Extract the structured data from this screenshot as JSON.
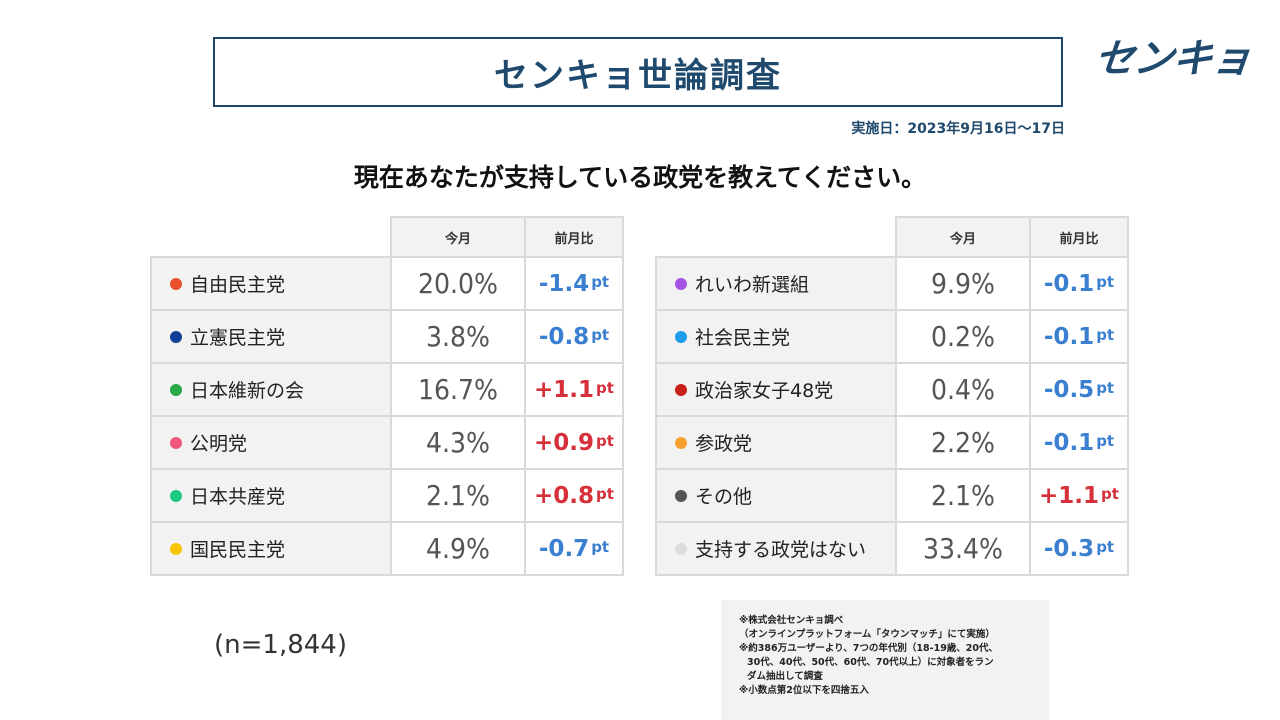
{
  "header": {
    "title": "センキョ世論調査",
    "logo_text": "センキョ",
    "survey_date": "実施日：2023年9月16日～17日"
  },
  "question": "現在あなたが支持している政党を教えてください。",
  "table_headers": {
    "current": "今月",
    "change": "前月比"
  },
  "change_unit": "pt",
  "chart_data": {
    "type": "table",
    "columns": [
      "今月",
      "前月比"
    ],
    "rows": [
      {
        "party": "自由民主党",
        "color": "#e8502e",
        "current": "20.0%",
        "change": "-1.4",
        "direction": "down"
      },
      {
        "party": "立憲民主党",
        "color": "#133f96",
        "current": "3.8%",
        "change": "-0.8",
        "direction": "down"
      },
      {
        "party": "日本維新の会",
        "color": "#27a84a",
        "current": "16.7%",
        "change": "+1.1",
        "direction": "up"
      },
      {
        "party": "公明党",
        "color": "#f0567a",
        "current": "4.3%",
        "change": "+0.9",
        "direction": "up"
      },
      {
        "party": "日本共産党",
        "color": "#1fc783",
        "current": "2.1%",
        "change": "+0.8",
        "direction": "up"
      },
      {
        "party": "国民民主党",
        "color": "#f6c300",
        "current": "4.9%",
        "change": "-0.7",
        "direction": "down"
      },
      {
        "party": "れいわ新選組",
        "color": "#a455e6",
        "current": "9.9%",
        "change": "-0.1",
        "direction": "down"
      },
      {
        "party": "社会民主党",
        "color": "#1e9bea",
        "current": "0.2%",
        "change": "-0.1",
        "direction": "down"
      },
      {
        "party": "政治家女子48党",
        "color": "#c9201c",
        "current": "0.4%",
        "change": "-0.5",
        "direction": "down"
      },
      {
        "party": "参政党",
        "color": "#f6a12e",
        "current": "2.2%",
        "change": "-0.1",
        "direction": "down"
      },
      {
        "party": "その他",
        "color": "#555555",
        "current": "2.1%",
        "change": "+1.1",
        "direction": "up"
      },
      {
        "party": "支持する政党はない",
        "color": "#dddddd",
        "current": "33.4%",
        "change": "-0.3",
        "direction": "down"
      }
    ]
  },
  "sample_size": "(n=1,844)",
  "notes": [
    "※株式会社センキョ調べ",
    "（オンラインプラットフォーム「タウンマッチ」にて実施）",
    "※約386万ユーザーより、7つの年代別（18-19歳、20代、",
    "30代、40代、50代、60代、70代以上）に対象者をラン",
    "ダム抽出して調査",
    "※小数点第2位以下を四捨五入"
  ]
}
